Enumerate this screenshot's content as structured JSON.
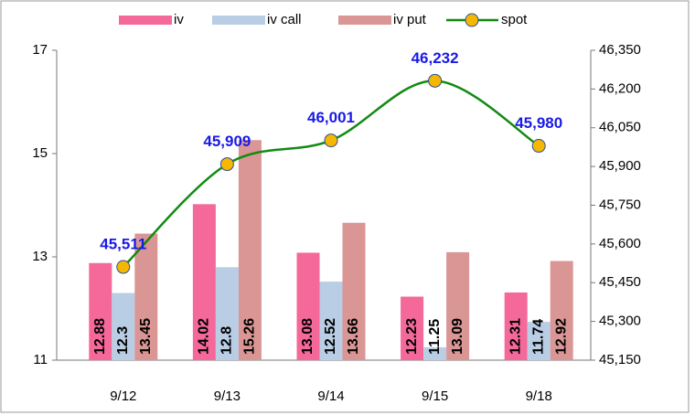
{
  "chart_data": {
    "type": "bar_line",
    "categories": [
      "9/12",
      "9/13",
      "9/14",
      "9/15",
      "9/18"
    ],
    "series": [
      {
        "name": "iv",
        "color": "#f4689a",
        "values": [
          12.88,
          14.02,
          13.08,
          12.23,
          12.31
        ]
      },
      {
        "name": "iv call",
        "color": "#b9cde5",
        "values": [
          12.3,
          12.8,
          12.52,
          11.25,
          11.74
        ]
      },
      {
        "name": "iv put",
        "color": "#d99694",
        "values": [
          13.45,
          15.26,
          13.66,
          13.09,
          12.92
        ]
      },
      {
        "name": "spot",
        "color": "#138a13",
        "marker_color": "#f5b700",
        "type": "line",
        "axis": "y2",
        "values": [
          45511,
          45909,
          46001,
          46232,
          45980
        ],
        "value_labels": [
          "45,511",
          "45,909",
          "46,001",
          "46,232",
          "45,980"
        ]
      }
    ],
    "ylim": [
      11,
      17
    ],
    "yticks": [
      11,
      13,
      15,
      17
    ],
    "y2lim": [
      45150,
      46350
    ],
    "y2ticks": [
      {
        "value": 45150,
        "label": "45,150"
      },
      {
        "value": 45300,
        "label": "45,300"
      },
      {
        "value": 45450,
        "label": "45,450"
      },
      {
        "value": 45600,
        "label": "45,600"
      },
      {
        "value": 45750,
        "label": "45,750"
      },
      {
        "value": 45900,
        "label": "45,900"
      },
      {
        "value": 46050,
        "label": "46,050"
      },
      {
        "value": 46200,
        "label": "46,200"
      },
      {
        "value": 46350,
        "label": "46,350"
      }
    ],
    "legend": "top"
  }
}
